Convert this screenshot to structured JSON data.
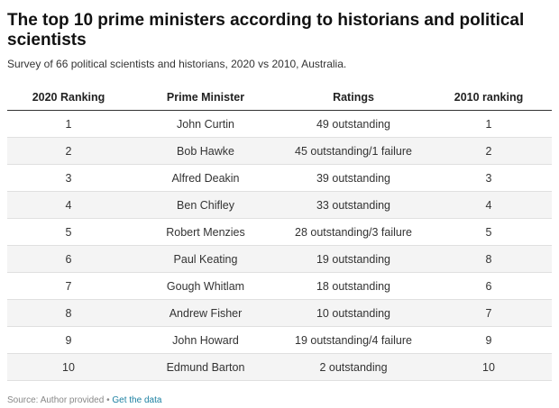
{
  "header": {
    "title": "The top 10 prime ministers according to historians and political scientists",
    "subtitle": "Survey of 66 political scientists and historians, 2020 vs 2010, Australia."
  },
  "table": {
    "columns": [
      "2020 Ranking",
      "Prime Minister",
      "Ratings",
      "2010 ranking"
    ],
    "rows": [
      [
        1,
        "John Curtin",
        "49 outstanding",
        1
      ],
      [
        2,
        "Bob Hawke",
        "45 outstanding/1 failure",
        2
      ],
      [
        3,
        "Alfred Deakin",
        "39 outstanding",
        3
      ],
      [
        4,
        "Ben Chifley",
        "33 outstanding",
        4
      ],
      [
        5,
        "Robert Menzies",
        "28 outstanding/3 failure",
        5
      ],
      [
        6,
        "Paul Keating",
        "19 outstanding",
        8
      ],
      [
        7,
        "Gough Whitlam",
        "18 outstanding",
        6
      ],
      [
        8,
        "Andrew Fisher",
        "10 outstanding",
        7
      ],
      [
        9,
        "John Howard",
        "19 outstanding/4 failure",
        9
      ],
      [
        10,
        "Edmund Barton",
        "2 outstanding",
        10
      ]
    ]
  },
  "footer": {
    "source": "Source: Author provided",
    "separator": "•",
    "link": "Get the data"
  }
}
